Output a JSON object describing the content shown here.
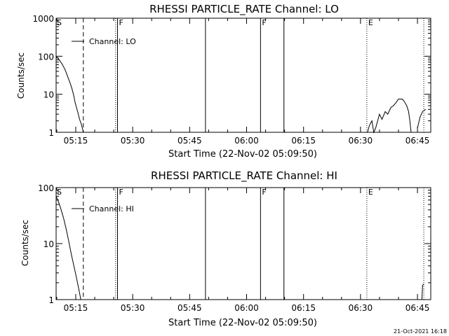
{
  "footer_timestamp": "21-Oct-2021 16:18",
  "chart_data": [
    {
      "type": "line",
      "title": "RHESSI PARTICLE_RATE Channel: LO",
      "xlabel": "Start Time (22-Nov-02 05:09:50)",
      "ylabel": "Counts/sec",
      "y_scale": "log",
      "ylim": [
        1,
        1000
      ],
      "xlim": [
        "05:09:50",
        "06:48:30"
      ],
      "yticks": [
        {
          "v": 1,
          "label": "1"
        },
        {
          "v": 10,
          "label": "10"
        },
        {
          "v": 100,
          "label": "100"
        },
        {
          "v": 1000,
          "label": "1000"
        }
      ],
      "xticks": [
        {
          "t": "05:15",
          "label": "05:15"
        },
        {
          "t": "05:30",
          "label": "05:30"
        },
        {
          "t": "05:45",
          "label": "05:45"
        },
        {
          "t": "06:00",
          "label": "06:00"
        },
        {
          "t": "06:15",
          "label": "06:15"
        },
        {
          "t": "06:30",
          "label": "06:30"
        },
        {
          "t": "06:45",
          "label": "06:45"
        }
      ],
      "legend": {
        "label": "Channel: LO",
        "placement": "top-left"
      },
      "vlines": [
        {
          "t": "05:17:00",
          "style": "dashed",
          "label": ""
        },
        {
          "t": "05:25:30",
          "style": "dotted",
          "label": ""
        },
        {
          "t": "05:26:00",
          "style": "solid",
          "label": "F"
        },
        {
          "t": "05:49:10",
          "style": "solid",
          "label": ""
        },
        {
          "t": "06:03:40",
          "style": "solid",
          "label": "F"
        },
        {
          "t": "06:09:50",
          "style": "solid",
          "label": ""
        },
        {
          "t": "06:31:40",
          "style": "dotted",
          "label": "E"
        },
        {
          "t": "06:46:40",
          "style": "dotted",
          "label": ""
        }
      ],
      "markers": [
        {
          "t": "05:09:50",
          "label": "S"
        }
      ],
      "series": [
        {
          "segments": [
            [
              [
                "05:09:50",
                100
              ],
              [
                "05:10:40",
                80
              ],
              [
                "05:11:30",
                60
              ],
              [
                "05:12:10",
                45
              ],
              [
                "05:12:50",
                30
              ],
              [
                "05:13:30",
                20
              ],
              [
                "05:14:00",
                14
              ],
              [
                "05:14:30",
                9
              ],
              [
                "05:14:50",
                6
              ],
              [
                "05:15:20",
                4
              ],
              [
                "05:15:40",
                3
              ],
              [
                "05:16:00",
                2.2
              ],
              [
                "05:16:30",
                1.6
              ],
              [
                "05:17:00",
                1
              ]
            ],
            [
              [
                "06:31:50",
                1
              ],
              [
                "06:32:20",
                1.5
              ],
              [
                "06:33:00",
                2
              ],
              [
                "06:33:30",
                1
              ],
              [
                "06:34:00",
                1.3
              ],
              [
                "06:35:00",
                3
              ],
              [
                "06:35:40",
                2.2
              ],
              [
                "06:36:30",
                3.5
              ],
              [
                "06:37:10",
                3
              ],
              [
                "06:38:00",
                4.5
              ],
              [
                "06:38:40",
                5
              ],
              [
                "06:39:20",
                6
              ],
              [
                "06:40:00",
                7.5
              ],
              [
                "06:41:00",
                7.5
              ],
              [
                "06:41:30",
                6.5
              ],
              [
                "06:42:10",
                5
              ],
              [
                "06:42:40",
                3.5
              ],
              [
                "06:43:00",
                2
              ],
              [
                "06:43:20",
                1
              ]
            ],
            [
              [
                "06:45:00",
                1.3
              ],
              [
                "06:45:40",
                2.5
              ],
              [
                "06:46:20",
                3.5
              ],
              [
                "06:47:10",
                4
              ]
            ]
          ]
        }
      ]
    },
    {
      "type": "line",
      "title": "RHESSI PARTICLE_RATE Channel: HI",
      "xlabel": "Start Time (22-Nov-02 05:09:50)",
      "ylabel": "Counts/sec",
      "y_scale": "log",
      "ylim": [
        1,
        100
      ],
      "xlim": [
        "05:09:50",
        "06:48:30"
      ],
      "yticks": [
        {
          "v": 1,
          "label": "1"
        },
        {
          "v": 10,
          "label": "10"
        },
        {
          "v": 100,
          "label": "100"
        }
      ],
      "xticks": [
        {
          "t": "05:15",
          "label": "05:15"
        },
        {
          "t": "05:30",
          "label": "05:30"
        },
        {
          "t": "05:45",
          "label": "05:45"
        },
        {
          "t": "06:00",
          "label": "06:00"
        },
        {
          "t": "06:15",
          "label": "06:15"
        },
        {
          "t": "06:30",
          "label": "06:30"
        },
        {
          "t": "06:45",
          "label": "06:45"
        }
      ],
      "legend": {
        "label": "Channel: HI",
        "placement": "top-left"
      },
      "vlines": [
        {
          "t": "05:17:00",
          "style": "dashed",
          "label": ""
        },
        {
          "t": "05:25:30",
          "style": "dotted",
          "label": ""
        },
        {
          "t": "05:26:00",
          "style": "solid",
          "label": "F"
        },
        {
          "t": "05:49:10",
          "style": "solid",
          "label": ""
        },
        {
          "t": "06:03:40",
          "style": "solid",
          "label": "F"
        },
        {
          "t": "06:09:50",
          "style": "solid",
          "label": ""
        },
        {
          "t": "06:31:40",
          "style": "dotted",
          "label": "E"
        },
        {
          "t": "06:46:40",
          "style": "dotted",
          "label": ""
        }
      ],
      "markers": [
        {
          "t": "05:09:50",
          "label": "S"
        }
      ],
      "series": [
        {
          "segments": [
            [
              [
                "05:09:50",
                70
              ],
              [
                "05:10:30",
                55
              ],
              [
                "05:11:10",
                40
              ],
              [
                "05:11:50",
                28
              ],
              [
                "05:12:30",
                18
              ],
              [
                "05:13:10",
                11
              ],
              [
                "05:13:50",
                6.5
              ],
              [
                "05:14:30",
                4
              ],
              [
                "05:15:10",
                2.5
              ],
              [
                "05:15:50",
                1.5
              ],
              [
                "05:16:20",
                1
              ]
            ],
            [
              [
                "06:46:10",
                1
              ],
              [
                "06:46:20",
                1.8
              ],
              [
                "06:46:40",
                1.9
              ]
            ]
          ]
        }
      ]
    }
  ]
}
